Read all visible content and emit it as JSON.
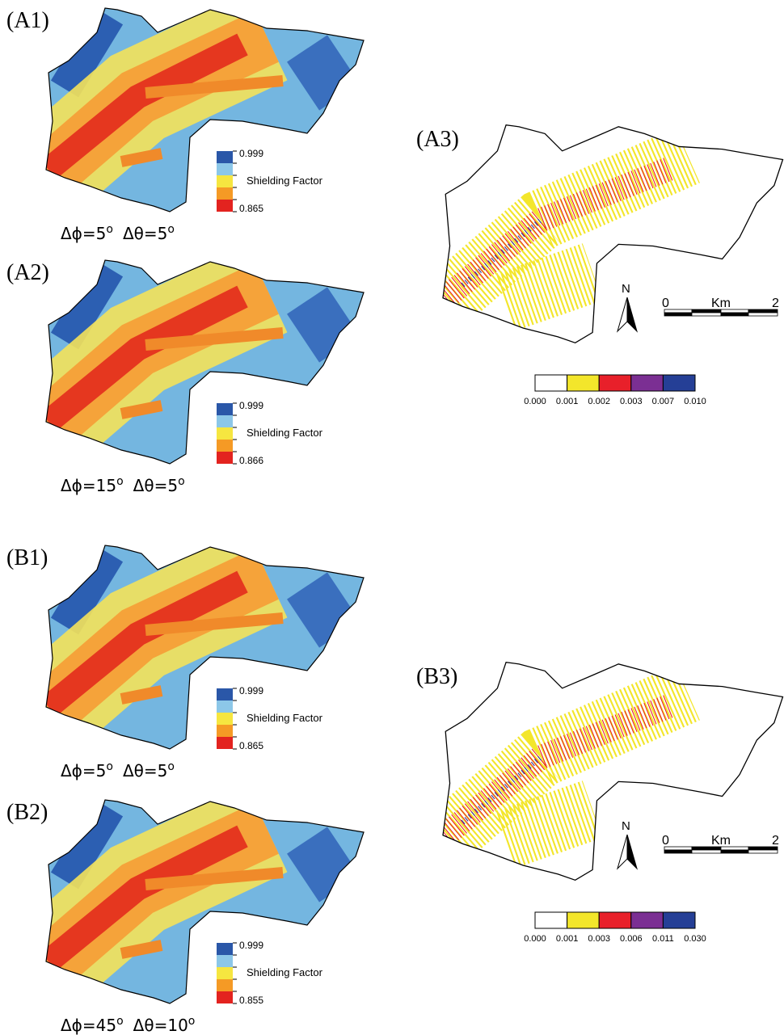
{
  "panels": [
    {
      "label": "(A1)",
      "legend": {
        "max": "0.999",
        "title": "Shielding Factor",
        "min": "0.865"
      },
      "caption": {
        "phi": "Δϕ=5",
        "phi_deg": "o",
        "theta": "Δθ=5",
        "theta_deg": "o"
      }
    },
    {
      "label": "(A2)",
      "legend": {
        "max": "0.999",
        "title": "Shielding Factor",
        "min": "0.866"
      },
      "caption": {
        "phi": "Δϕ=15",
        "phi_deg": "o",
        "theta": "Δθ=5",
        "theta_deg": "o"
      }
    },
    {
      "label": "(B1)",
      "legend": {
        "max": "0.999",
        "title": "Shielding Factor",
        "min": "0.865"
      },
      "caption": {
        "phi": "Δϕ=5",
        "phi_deg": "o",
        "theta": "Δθ=5",
        "theta_deg": "o"
      }
    },
    {
      "label": "(B2)",
      "legend": {
        "max": "0.999",
        "title": "Shielding Factor",
        "min": "0.855"
      },
      "caption": {
        "phi": "Δϕ=45",
        "phi_deg": "o",
        "theta": "Δθ=10",
        "theta_deg": "o"
      }
    }
  ],
  "difference_maps": [
    {
      "label": "(A3)",
      "north": "N",
      "scale": {
        "start": "0",
        "unit": "Km",
        "end": "2"
      },
      "legend": {
        "breaks": [
          "0.000",
          "0.001",
          "0.002",
          "0.003",
          "0.007",
          "0.010"
        ],
        "colors": [
          "#ffffff",
          "#f3e62b",
          "#e8202a",
          "#7b2f93",
          "#253f96"
        ]
      }
    },
    {
      "label": "(B3)",
      "north": "N",
      "scale": {
        "start": "0",
        "unit": "Km",
        "end": "2"
      },
      "legend": {
        "breaks": [
          "0.000",
          "0.001",
          "0.003",
          "0.006",
          "0.011",
          "0.030"
        ],
        "colors": [
          "#ffffff",
          "#f3e62b",
          "#e8202a",
          "#7b2f93",
          "#253f96"
        ]
      }
    }
  ]
}
